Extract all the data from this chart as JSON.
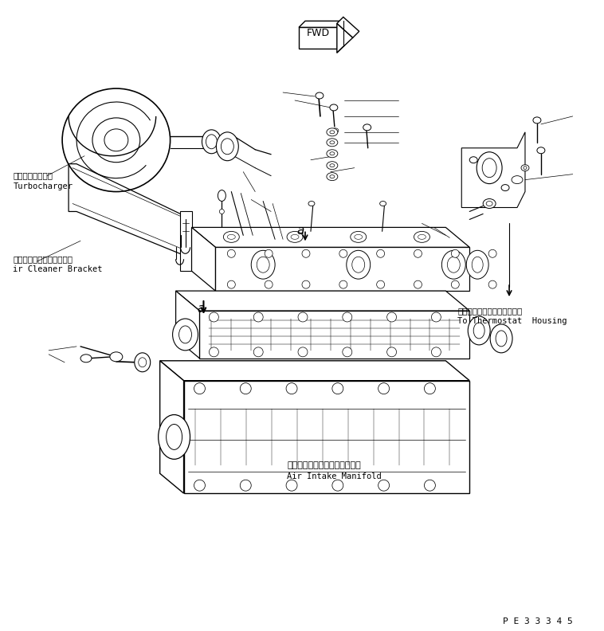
{
  "background_color": "#ffffff",
  "line_color": "#000000",
  "fig_width": 7.58,
  "fig_height": 7.92,
  "dpi": 100,
  "label_turbo_jp": "ターボチャージャ",
  "label_turbo_en": "Turbocharger",
  "label_bracket_jp": "エアークリーナブラケット",
  "label_bracket_en": "ir Cleaner Bracket",
  "label_thermo_jp": "サーモスタットハウジングへ",
  "label_thermo_en": "To Thermostat  Housing",
  "label_manifold_jp": "エアーインテークマニホールド",
  "label_manifold_en": "Air Intake Manifold",
  "label_pe": "P E 3 3 3 4 5"
}
